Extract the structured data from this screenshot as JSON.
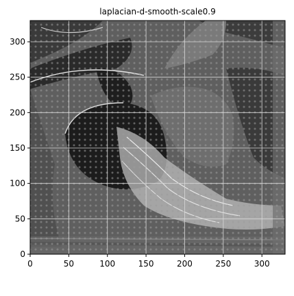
{
  "chart_data": {
    "type": "heatmap",
    "title": "laplacian-d-smooth-scale0.9",
    "xlabel": "",
    "ylabel": "",
    "xlim": [
      0,
      330
    ],
    "ylim": [
      0,
      330
    ],
    "x_ticks": [
      0,
      50,
      100,
      150,
      200,
      250,
      300
    ],
    "y_ticks": [
      0,
      50,
      100,
      150,
      200,
      250,
      300
    ],
    "grid": true,
    "colormap": "gray",
    "colors": {
      "grid": "#d9d9d9",
      "axes": "#000000"
    }
  }
}
